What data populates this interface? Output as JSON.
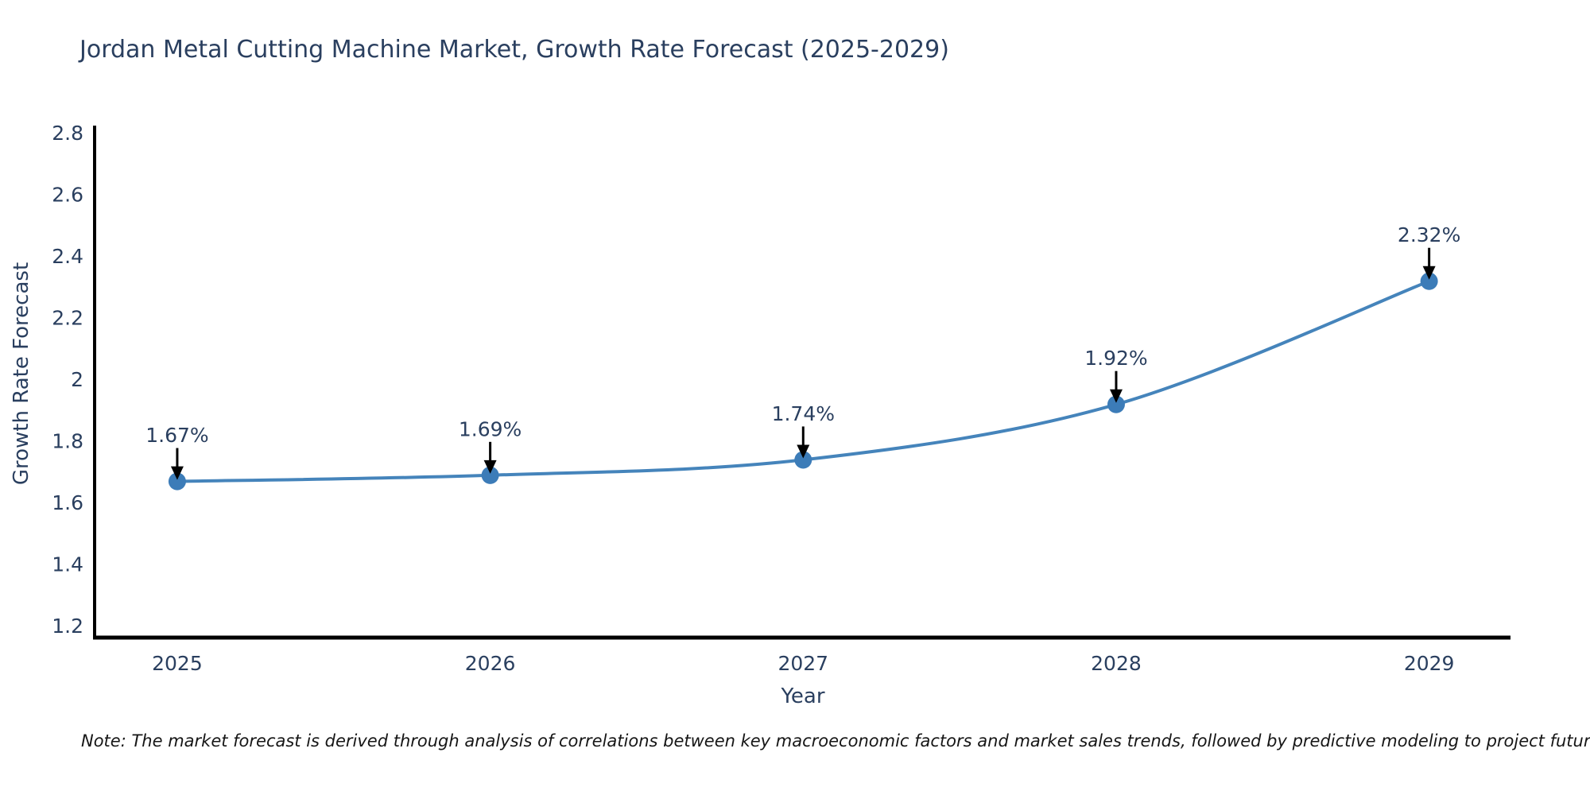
{
  "footnote": {
    "text": "Note: The market forecast is derived through analysis of correlations between key macroeconomic factors and market sales trends, followed by predictive modeling to project future sales"
  },
  "chart_data": {
    "type": "line",
    "title": "Jordan Metal Cutting Machine Market, Growth Rate Forecast (2025-2029)",
    "xlabel": "Year",
    "ylabel": "Growth Rate Forecast",
    "x": [
      2025,
      2026,
      2027,
      2028,
      2029
    ],
    "x_tick_labels": [
      "2025",
      "2026",
      "2027",
      "2028",
      "2029"
    ],
    "series": [
      {
        "name": "Growth Rate Forecast",
        "values": [
          1.67,
          1.69,
          1.74,
          1.92,
          2.32
        ]
      }
    ],
    "point_labels": [
      "1.67%",
      "1.69%",
      "1.74%",
      "1.92%",
      "2.32%"
    ],
    "y_ticks": {
      "values": [
        1.2,
        1.4,
        1.6,
        1.8,
        2,
        2.2,
        2.4,
        2.6,
        2.8
      ],
      "labels": [
        "1.2",
        "1.4",
        "1.6",
        "1.8",
        "2",
        "2.2",
        "2.4",
        "2.6",
        "2.8"
      ]
    },
    "x_range": [
      2024.736,
      2029.26
    ],
    "y_range": [
      1.163,
      2.82
    ],
    "line_shape": "spline",
    "grid": false,
    "legend_position": "none",
    "colors": {
      "line": "#4584bb",
      "marker": "#3c7cb8",
      "axis": "#000000",
      "tick_label": "#2a3f5f",
      "annotation_text": "#2a3f5f",
      "annotation_arrow": "#000000",
      "title": "#2a3f5f"
    }
  }
}
